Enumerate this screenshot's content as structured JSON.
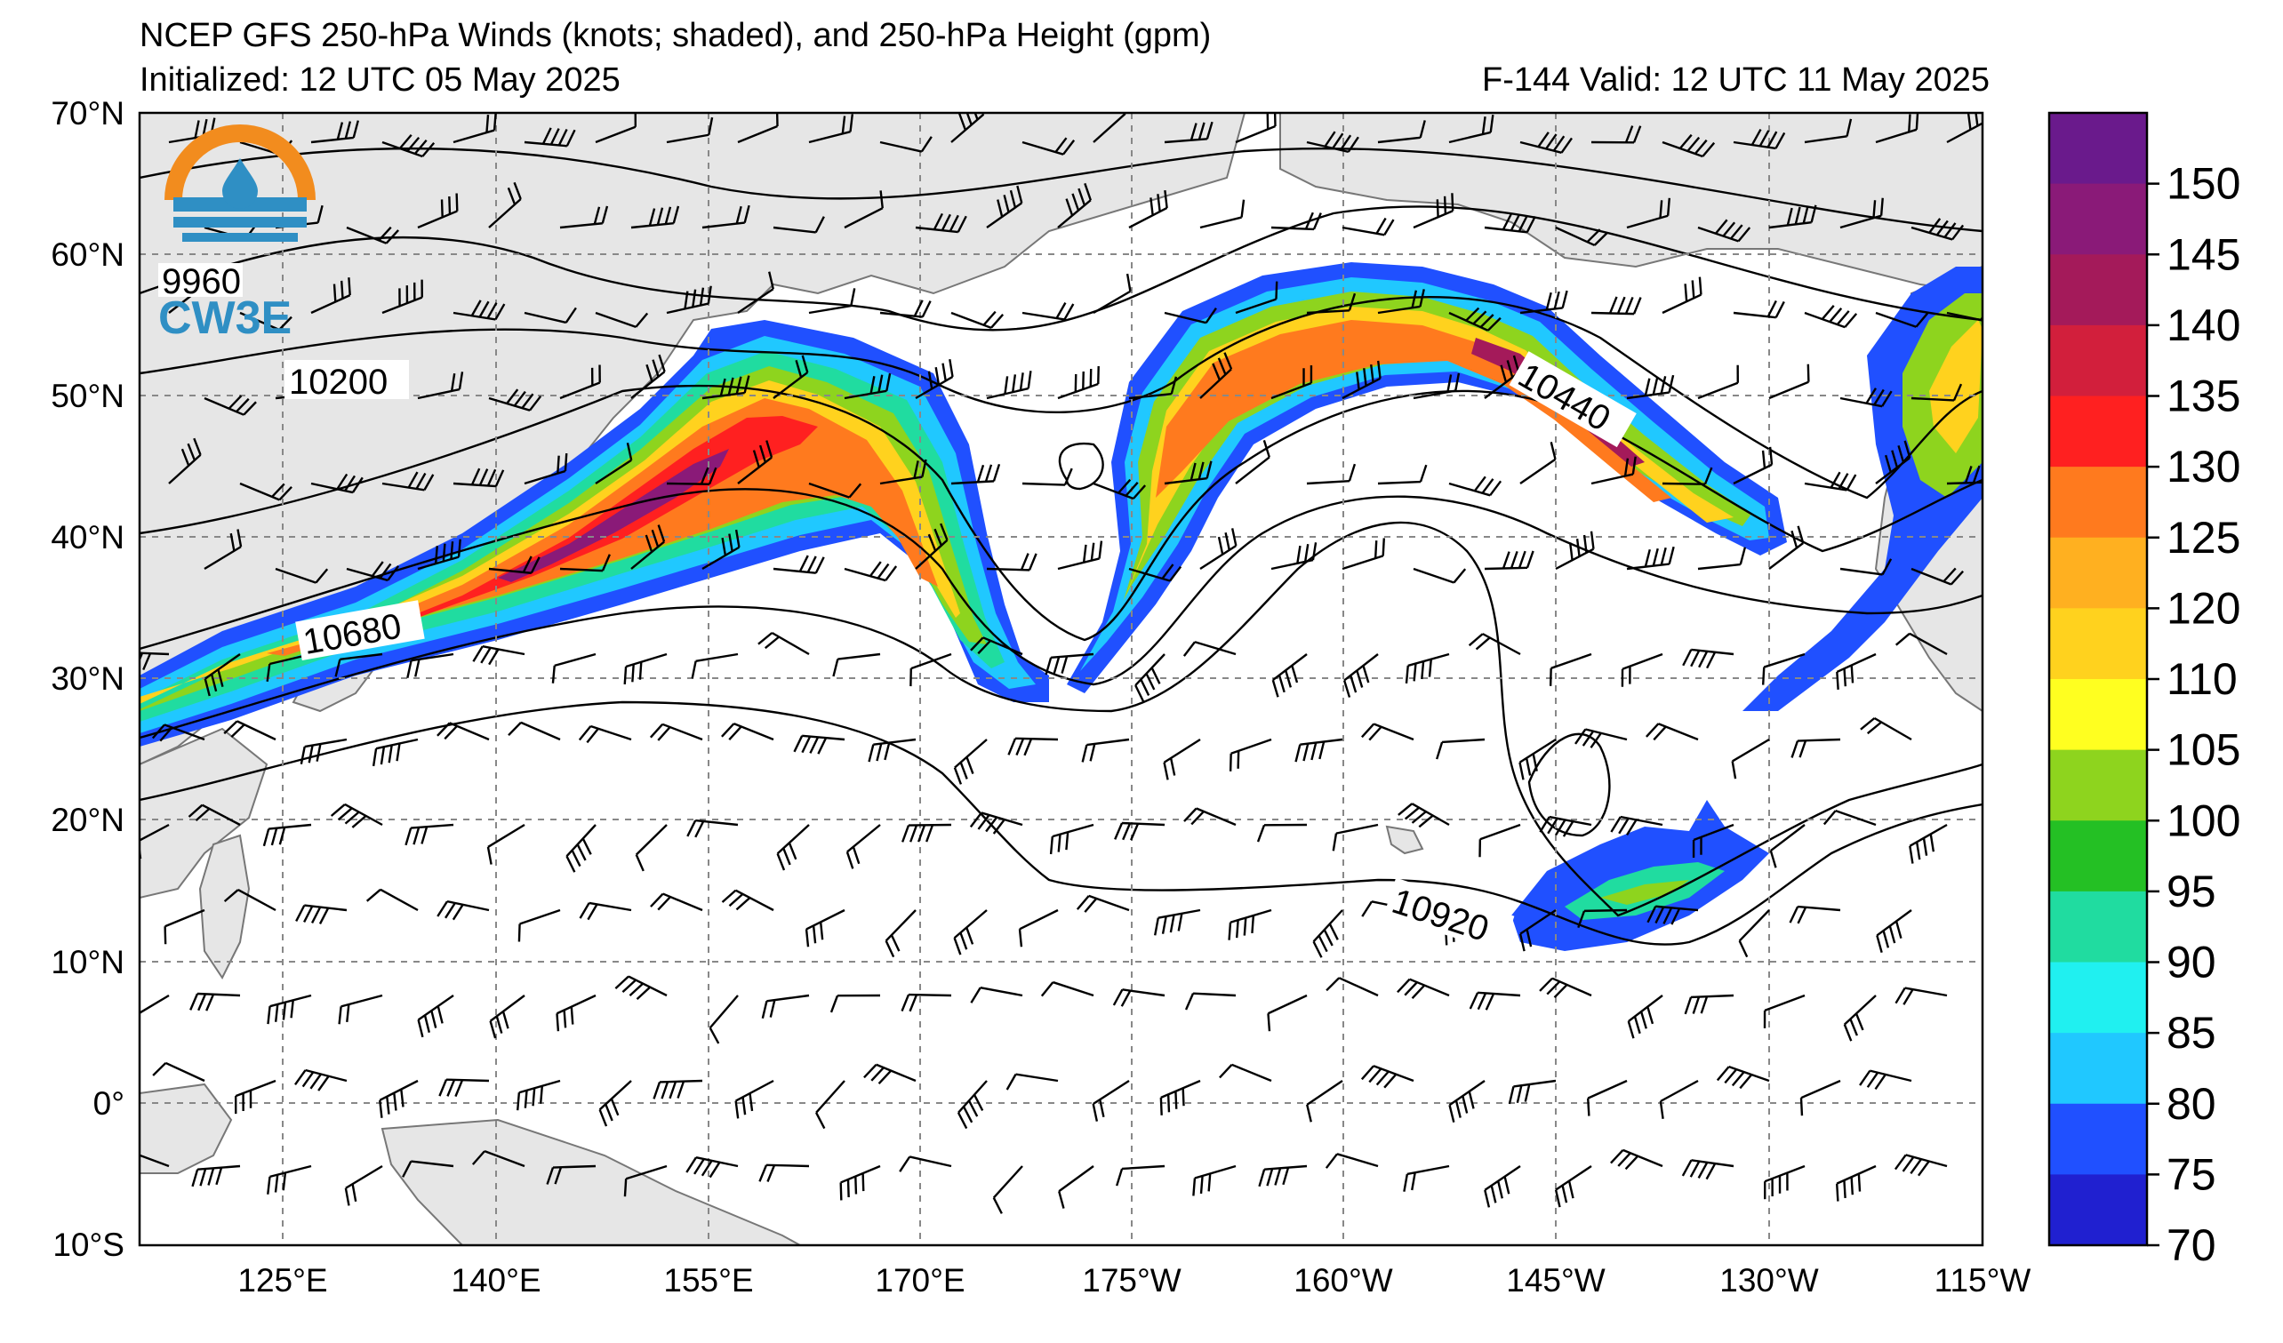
{
  "header": {
    "title": "NCEP GFS 250-hPa Winds (knots; shaded), and 250-hPa Height (gpm)",
    "initialized": "Initialized: 12 UTC 05 May 2025",
    "valid": "F-144  Valid: 12 UTC 11 May 2025"
  },
  "logo": {
    "text": "CW3E",
    "colors": {
      "ring": "#f28c1e",
      "water": "#2f8fc4"
    }
  },
  "axes": {
    "lat_labels": [
      "70°N",
      "60°N",
      "50°N",
      "40°N",
      "30°N",
      "20°N",
      "10°N",
      "0°",
      "10°S"
    ],
    "lon_labels": [
      "125°E",
      "140°E",
      "155°E",
      "170°E",
      "175°W",
      "160°W",
      "145°W",
      "130°W",
      "115°W"
    ]
  },
  "contour_labels": [
    "9960",
    "10200",
    "10680",
    "10440",
    "10920"
  ],
  "colorbar": {
    "ticks": [
      "150",
      "145",
      "140",
      "135",
      "130",
      "125",
      "120",
      "110",
      "105",
      "100",
      "95",
      "90",
      "85",
      "80",
      "75",
      "70"
    ],
    "colors": [
      "#6a1a8c",
      "#8a1a78",
      "#a41a5a",
      "#d21f3c",
      "#ff2020",
      "#ff7a1e",
      "#ffb020",
      "#ffd21e",
      "#ffff20",
      "#8ed41e",
      "#24c024",
      "#20dca0",
      "#20f0f0",
      "#20c8ff",
      "#2050ff",
      "#2020d0"
    ]
  }
}
